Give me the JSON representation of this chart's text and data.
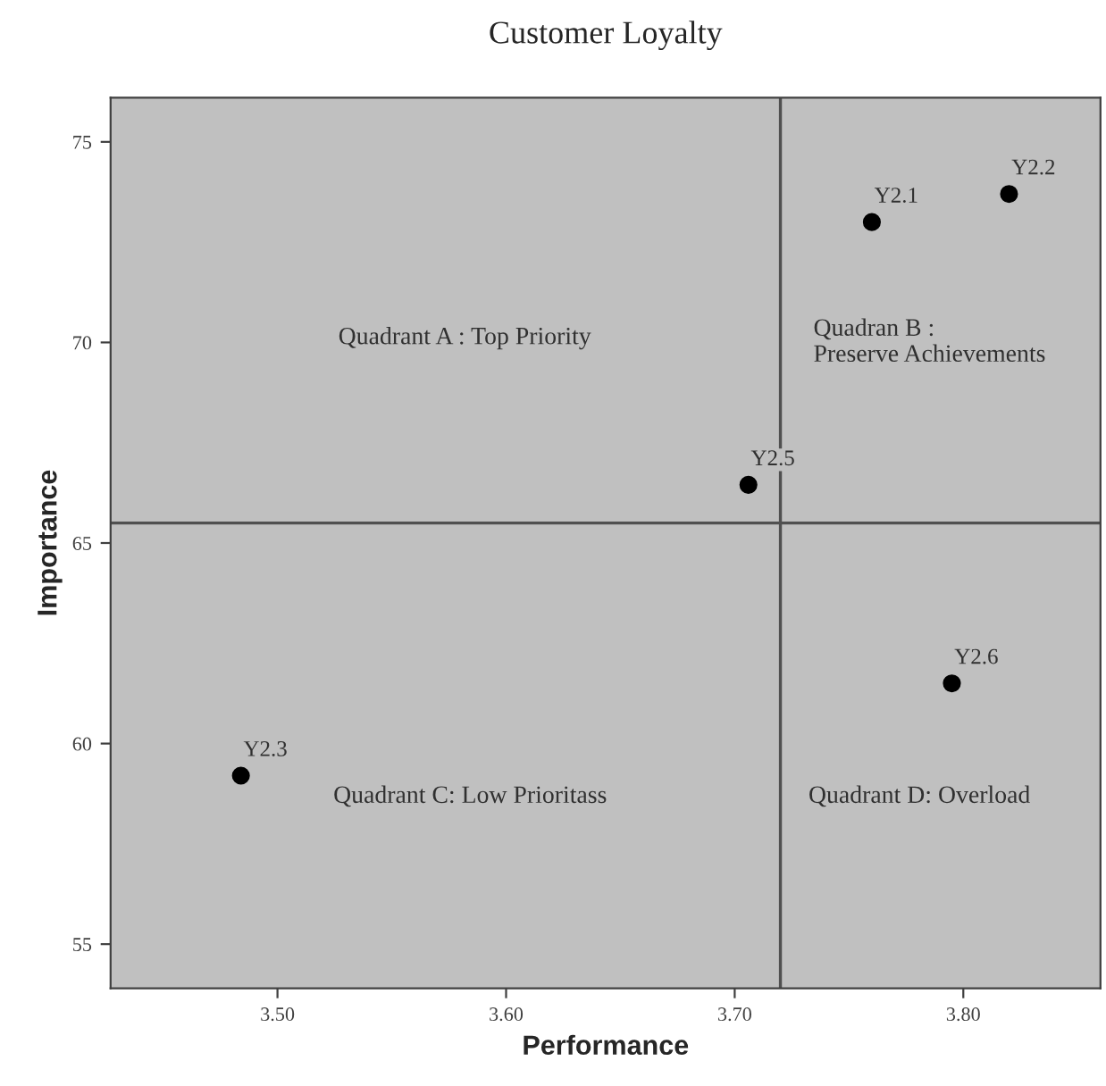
{
  "chart_data": {
    "type": "scatter",
    "title": "Customer Loyalty",
    "xlabel": "Performance",
    "ylabel": "Importance",
    "series": [
      {
        "color": "#000000",
        "x": [
          3.76,
          3.82,
          3.484,
          3.706,
          3.795
        ],
        "values": [
          73.0,
          73.7,
          59.2,
          66.45,
          61.5
        ],
        "value_labels": [
          "Y2.1",
          "Y2.2",
          "Y2.3",
          "Y2.5",
          "Y2.6"
        ]
      }
    ],
    "xlim": [
      3.427,
      3.86
    ],
    "ylim": [
      53.9,
      76.1
    ],
    "xticks": [
      {
        "value": 3.5,
        "label": "3.50"
      },
      {
        "value": 3.6,
        "label": "3.60"
      },
      {
        "value": 3.7,
        "label": "3.70"
      },
      {
        "value": 3.8,
        "label": "3.80"
      }
    ],
    "yticks": [
      55,
      60,
      65,
      70,
      75
    ],
    "ref_lines": [
      {
        "axis": "x",
        "value": 3.72,
        "color": "#505050"
      },
      {
        "axis": "y",
        "value": 65.5,
        "color": "#505050"
      }
    ],
    "annotations": [
      "Quadrant A : Top Priority",
      "Quadran B :\nPreserve Achievements",
      "Quadrant C: Low Prioritass",
      "Quadrant D: Overload"
    ],
    "grid": false,
    "marker": "circle"
  }
}
